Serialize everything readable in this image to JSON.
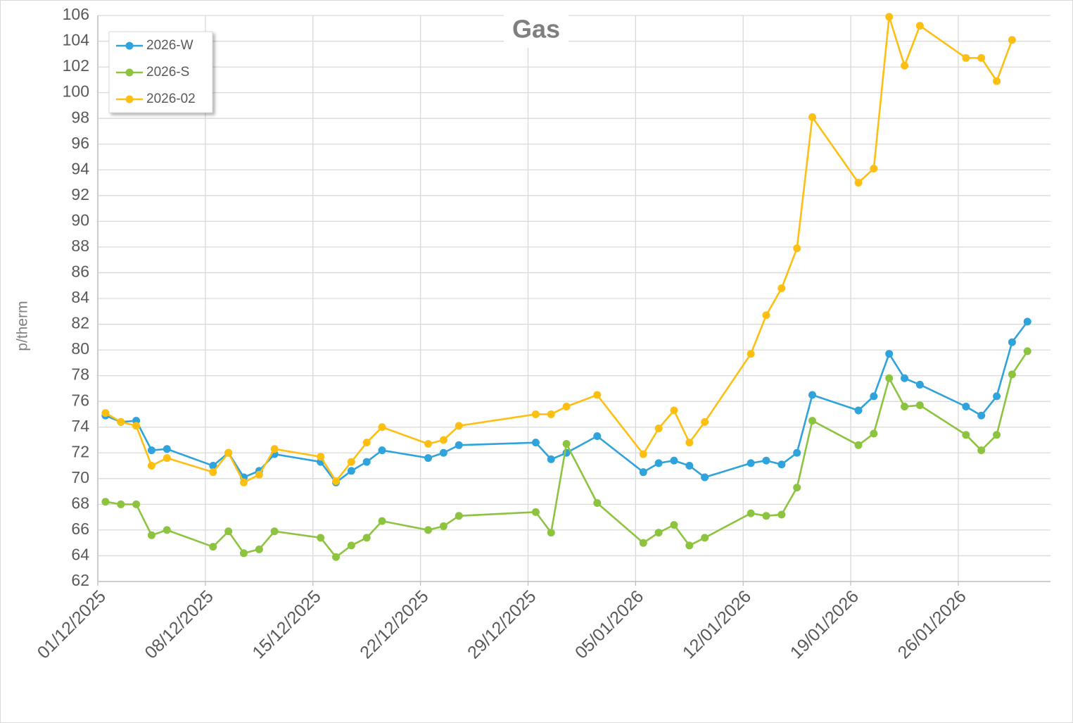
{
  "chart_data": {
    "type": "line",
    "title": "Gas",
    "y_label": "p/therm",
    "x": [
      "2025-12-01",
      "2025-12-02",
      "2025-12-03",
      "2025-12-04",
      "2025-12-05",
      "2025-12-08",
      "2025-12-09",
      "2025-12-10",
      "2025-12-11",
      "2025-12-12",
      "2025-12-15",
      "2025-12-16",
      "2025-12-17",
      "2025-12-18",
      "2025-12-19",
      "2025-12-22",
      "2025-12-23",
      "2025-12-24",
      "2025-12-29",
      "2025-12-30",
      "2025-12-31",
      "2026-01-02",
      "2026-01-05",
      "2026-01-06",
      "2026-01-07",
      "2026-01-08",
      "2026-01-09",
      "2026-01-12",
      "2026-01-13",
      "2026-01-14",
      "2026-01-15",
      "2026-01-16",
      "2026-01-19",
      "2026-01-20",
      "2026-01-21",
      "2026-01-22",
      "2026-01-23",
      "2026-01-26",
      "2026-01-27",
      "2026-01-28",
      "2026-01-29",
      "2026-01-30"
    ],
    "series": [
      {
        "name": "2026-W",
        "color": "#2ea3dc",
        "values": [
          74.9,
          74.4,
          74.5,
          72.2,
          72.3,
          71.0,
          72.0,
          70.1,
          70.6,
          71.9,
          71.3,
          69.7,
          70.6,
          71.3,
          72.2,
          71.6,
          72.0,
          72.6,
          72.8,
          71.5,
          72.0,
          73.3,
          70.5,
          71.2,
          71.4,
          71.0,
          70.1,
          71.2,
          71.4,
          71.1,
          72.0,
          76.5,
          75.3,
          76.4,
          79.7,
          77.8,
          77.3,
          75.6,
          74.9,
          76.4,
          80.6,
          82.2
        ]
      },
      {
        "name": "2026-S",
        "color": "#8dc43f",
        "values": [
          68.2,
          68.0,
          68.0,
          65.6,
          66.0,
          64.7,
          65.9,
          64.2,
          64.5,
          65.9,
          65.4,
          63.9,
          64.8,
          65.4,
          66.7,
          66.0,
          66.3,
          67.1,
          67.4,
          65.8,
          72.7,
          68.1,
          65.0,
          65.8,
          66.4,
          64.8,
          65.4,
          67.3,
          67.1,
          67.2,
          69.3,
          74.5,
          72.6,
          73.5,
          77.8,
          75.6,
          75.7,
          73.4,
          72.2,
          73.4,
          78.1,
          79.9
        ]
      },
      {
        "name": "2026-02",
        "color": "#fdbf12",
        "values": [
          75.1,
          74.4,
          74.1,
          71.0,
          71.6,
          70.5,
          72.0,
          69.7,
          70.3,
          72.3,
          71.7,
          69.8,
          71.3,
          72.8,
          74.0,
          72.7,
          73.0,
          74.1,
          75.0,
          75.0,
          75.6,
          76.5,
          71.9,
          73.9,
          75.3,
          72.8,
          74.4,
          79.7,
          82.7,
          84.8,
          87.9,
          98.1,
          93.0,
          94.1,
          105.9,
          102.1,
          105.2,
          102.7,
          102.7,
          100.9,
          104.1,
          null
        ]
      }
    ],
    "xlim": [
      "2025-12-01",
      "2026-02-01"
    ],
    "xticks": [
      {
        "value": "2025-12-01",
        "label": "01/12/2025"
      },
      {
        "value": "2025-12-08",
        "label": "08/12/2025"
      },
      {
        "value": "2025-12-15",
        "label": "15/12/2025"
      },
      {
        "value": "2025-12-22",
        "label": "22/12/2025"
      },
      {
        "value": "2025-12-29",
        "label": "29/12/2025"
      },
      {
        "value": "2026-01-05",
        "label": "05/01/2026"
      },
      {
        "value": "2026-01-12",
        "label": "12/01/2026"
      },
      {
        "value": "2026-01-19",
        "label": "19/01/2026"
      },
      {
        "value": "2026-01-26",
        "label": "26/01/2026"
      }
    ],
    "ylim": [
      62,
      106
    ],
    "yticks": [
      62,
      64,
      66,
      68,
      70,
      72,
      74,
      76,
      78,
      80,
      82,
      84,
      86,
      88,
      90,
      92,
      94,
      96,
      98,
      100,
      102,
      104,
      106
    ],
    "grid": true,
    "legend": "top-left"
  }
}
